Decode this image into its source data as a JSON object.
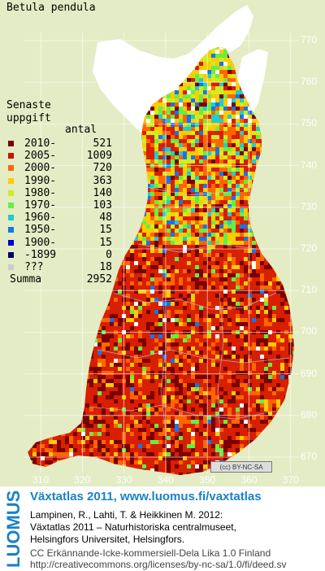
{
  "species": "Betula pendula",
  "legend": {
    "heading_line1": "Senaste",
    "heading_line2": "uppgift",
    "count_header": "antal",
    "rows": [
      {
        "period": "2010-",
        "count": "521",
        "color": "#7a0000"
      },
      {
        "period": "2005-",
        "count": "1009",
        "color": "#cc1100"
      },
      {
        "period": "2000-",
        "count": "720",
        "color": "#ff6600"
      },
      {
        "period": "1990-",
        "count": "363",
        "color": "#ffcc00"
      },
      {
        "period": "1980-",
        "count": "140",
        "color": "#ccee22"
      },
      {
        "period": "1970-",
        "count": "103",
        "color": "#66ee44"
      },
      {
        "period": "1960-",
        "count": "48",
        "color": "#22cccc"
      },
      {
        "period": "1950-",
        "count": "15",
        "color": "#1177ee"
      },
      {
        "period": "1900-",
        "count": "15",
        "color": "#0000cc"
      },
      {
        "period": "-1899",
        "count": "0",
        "color": "#000066"
      },
      {
        "period": "???",
        "count": "18",
        "color": "#cccccc"
      }
    ],
    "summa_label": "Summa",
    "summa_value": "2952"
  },
  "y_ticks": [
    "770",
    "760",
    "750",
    "740",
    "730",
    "720",
    "710",
    "700",
    "690",
    "680",
    "670"
  ],
  "x_ticks": [
    "310",
    "320",
    "330",
    "340",
    "350",
    "360",
    "370"
  ],
  "license_badge": "BY-NC-SA",
  "footer": {
    "logo_text": "LUOMUS",
    "title": "Växtatlas 2011, www.luomus.fi/vaxtatlas",
    "citation_line1": "Lampinen, R., Lahti, T. & Heikkinen M. 2012:",
    "citation_line2": "Växtatlas 2011 – Naturhistoriska centralmuseet,",
    "citation_line3": "Helsingfors Universitet, Helsingfors.",
    "license_line1": "CC Erkännande-Icke-kommersiell-Dela Lika 1.0 Finland",
    "license_line2": "http://creativecommons.org/licenses/by-nc-sa/1.0/fi/deed.sv"
  },
  "colors": {
    "background": "#e3ecc4",
    "land_base": "#d81f00",
    "brand_blue": "#1a82c7"
  }
}
